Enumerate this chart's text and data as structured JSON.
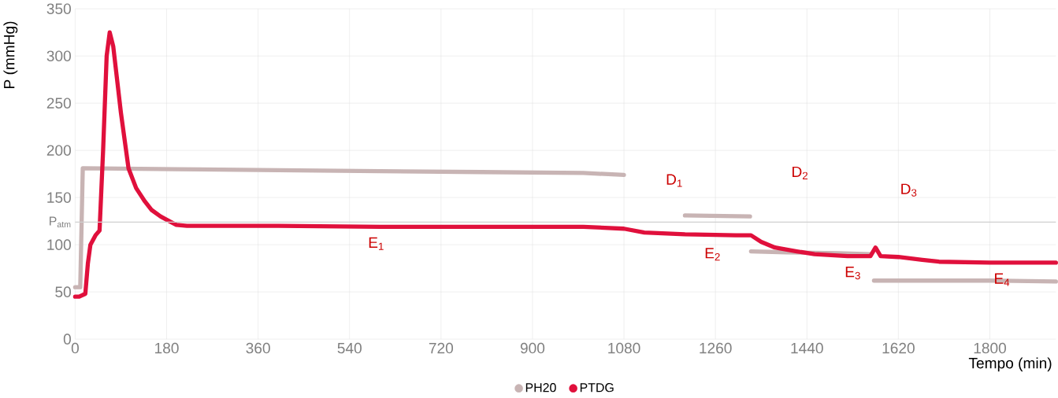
{
  "chart_data": {
    "type": "line",
    "xlabel": "Tempo (min)",
    "ylabel": "P (mmHg)",
    "xlim": [
      0,
      1930
    ],
    "ylim": [
      0,
      350
    ],
    "xticks": [
      0,
      180,
      360,
      540,
      720,
      900,
      1080,
      1260,
      1440,
      1620,
      1800
    ],
    "yticks": [
      0,
      50,
      100,
      150,
      200,
      250,
      300,
      350
    ],
    "grid": true,
    "legend": "bottom",
    "marker": "none",
    "series": [
      {
        "name": "PH20",
        "color": "#c8b4b4",
        "x": [
          0,
          10,
          15,
          200,
          400,
          600,
          800,
          1000,
          1080,
          1082,
          1200,
          1328,
          1329,
          1330,
          1400,
          1500,
          1565,
          1566,
          1572,
          1700,
          1800,
          1930
        ],
        "values": [
          55,
          55,
          181,
          180,
          179,
          178,
          177,
          176,
          174,
          null,
          131,
          130,
          null,
          93,
          92,
          91,
          90,
          null,
          62,
          62,
          62,
          61
        ]
      },
      {
        "name": "PTDG",
        "color": "#e0103c",
        "x": [
          0,
          8,
          20,
          25,
          30,
          40,
          48,
          55,
          62,
          68,
          75,
          90,
          105,
          120,
          137,
          150,
          168,
          185,
          199,
          220,
          400,
          600,
          800,
          1000,
          1080,
          1120,
          1200,
          1300,
          1330,
          1350,
          1377,
          1420,
          1455,
          1520,
          1565,
          1575,
          1585,
          1620,
          1667,
          1700,
          1800,
          1930
        ],
        "values": [
          45,
          45,
          48,
          80,
          100,
          110,
          115,
          200,
          300,
          325,
          310,
          240,
          181,
          160,
          146,
          137,
          130,
          125,
          121,
          120,
          120,
          119,
          119,
          119,
          117,
          113,
          111,
          110,
          110,
          103,
          97,
          93,
          90,
          88,
          88,
          97,
          88,
          87,
          84,
          82,
          81,
          81
        ]
      }
    ],
    "ref_lines": [
      {
        "axis": "y",
        "value": 124,
        "label": "P$_{atm}$",
        "color": "#d0d0d0"
      }
    ],
    "annotations": [
      "E$_{1}$",
      "E$_{2}$",
      "E$_{3}$",
      "E$_{4}$",
      "D$_{1}$",
      "D$_{2}$",
      "D$_{3}$"
    ]
  }
}
